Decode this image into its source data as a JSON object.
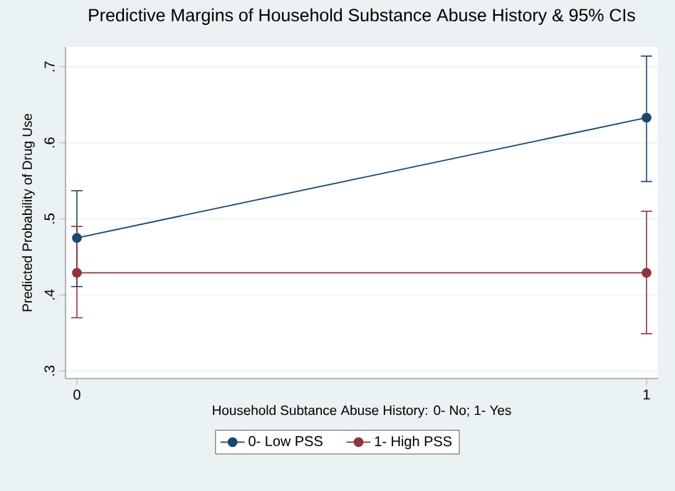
{
  "chart_data": {
    "type": "line",
    "title": "Predictive Margins of Household Substance Abuse History & 95% CIs",
    "xlabel": "Household Subtance Abuse History: 0- No; 1- Yes",
    "ylabel": "Predicted Probability of Drug Use",
    "x": [
      0,
      1
    ],
    "xlim": [
      -0.02,
      1.02
    ],
    "xticks": [
      0,
      1
    ],
    "ylim": [
      0.29,
      0.726
    ],
    "yticks": [
      {
        "value": 0.3,
        "label": ".3"
      },
      {
        "value": 0.4,
        "label": ".4"
      },
      {
        "value": 0.5,
        "label": ".5"
      },
      {
        "value": 0.6,
        "label": ".6"
      },
      {
        "value": 0.7,
        "label": ".7"
      }
    ],
    "grid": "y",
    "legend": "bottom",
    "marker": "circle",
    "series": [
      {
        "name": "0- Low PSS",
        "color": "#1a476f",
        "values": [
          0.475,
          0.633
        ],
        "errors": [
          [
            0.411,
            0.537
          ],
          [
            0.549,
            0.714
          ]
        ]
      },
      {
        "name": "1- High PSS",
        "color": "#90353b",
        "values": [
          0.429,
          0.429
        ],
        "errors": [
          [
            0.37,
            0.49
          ],
          [
            0.349,
            0.51
          ]
        ]
      }
    ]
  }
}
